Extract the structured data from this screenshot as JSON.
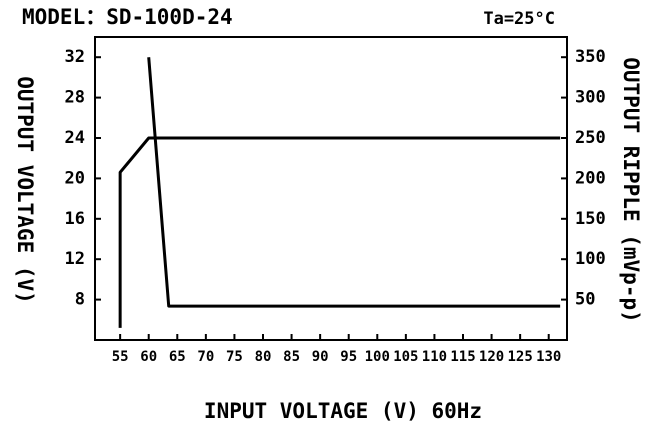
{
  "chart_data": {
    "type": "line",
    "title": "MODEL：SD-100D-24",
    "annotation": "Ta=25°C",
    "x_label": "INPUT VOLTAGE (V) 60Hz",
    "y_label": "OUTPUT VOLTAGE (V)",
    "y2_label": "OUTPUT RIPPLE (mVp-p)",
    "series": [
      {
        "name": "Output voltage",
        "color": "#000000",
        "x": [
          55,
          55,
          60,
          132
        ],
        "values": [
          5.2,
          20.6,
          24,
          24
        ]
      },
      {
        "name": "Output ripple",
        "color": "#000000",
        "axis": "y2",
        "x": [
          60,
          63.5,
          132
        ],
        "values": [
          350,
          42,
          42
        ]
      }
    ],
    "xlim": [
      50.6,
      133.2
    ],
    "xticks": [
      55,
      60,
      65,
      70,
      75,
      80,
      85,
      90,
      95,
      100,
      105,
      110,
      115,
      120,
      125,
      130
    ],
    "ylim": [
      4,
      34
    ],
    "yticks": [
      8,
      12,
      16,
      20,
      24,
      28,
      32
    ],
    "y2lim": [
      0,
      375
    ],
    "y2ticks": [
      50,
      100,
      150,
      200,
      250,
      300,
      350
    ],
    "grid": false
  }
}
